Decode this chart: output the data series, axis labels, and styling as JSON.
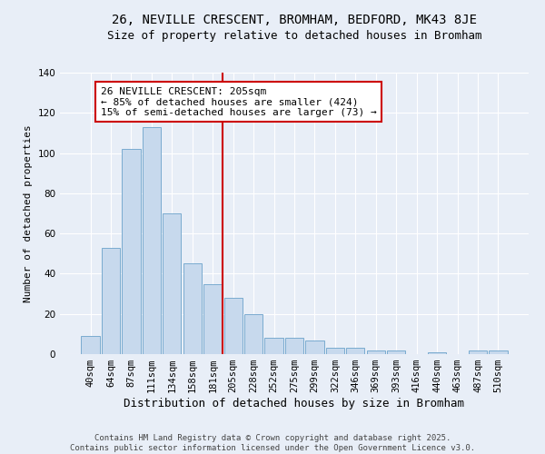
{
  "title": "26, NEVILLE CRESCENT, BROMHAM, BEDFORD, MK43 8JE",
  "subtitle": "Size of property relative to detached houses in Bromham",
  "xlabel": "Distribution of detached houses by size in Bromham",
  "ylabel": "Number of detached properties",
  "categories": [
    "40sqm",
    "64sqm",
    "87sqm",
    "111sqm",
    "134sqm",
    "158sqm",
    "181sqm",
    "205sqm",
    "228sqm",
    "252sqm",
    "275sqm",
    "299sqm",
    "322sqm",
    "346sqm",
    "369sqm",
    "393sqm",
    "416sqm",
    "440sqm",
    "463sqm",
    "487sqm",
    "510sqm"
  ],
  "values": [
    9,
    53,
    102,
    113,
    70,
    45,
    35,
    28,
    20,
    8,
    8,
    7,
    3,
    3,
    2,
    2,
    0,
    1,
    0,
    2,
    2
  ],
  "bar_color": "#c7d9ed",
  "bar_edge_color": "#7aabcf",
  "vline_index": 7,
  "annotation_title": "26 NEVILLE CRESCENT: 205sqm",
  "annotation_line1": "← 85% of detached houses are smaller (424)",
  "annotation_line2": "15% of semi-detached houses are larger (73) →",
  "annotation_box_color": "#ffffff",
  "annotation_box_edge": "#cc0000",
  "vline_color": "#cc0000",
  "background_color": "#e8eef7",
  "grid_color": "#ffffff",
  "ylim": [
    0,
    140
  ],
  "yticks": [
    0,
    20,
    40,
    60,
    80,
    100,
    120,
    140
  ],
  "footer": "Contains HM Land Registry data © Crown copyright and database right 2025.\nContains public sector information licensed under the Open Government Licence v3.0.",
  "title_fontsize": 10,
  "subtitle_fontsize": 9,
  "xlabel_fontsize": 9,
  "ylabel_fontsize": 8,
  "tick_fontsize": 7.5,
  "annotation_fontsize": 8,
  "footer_fontsize": 6.5
}
